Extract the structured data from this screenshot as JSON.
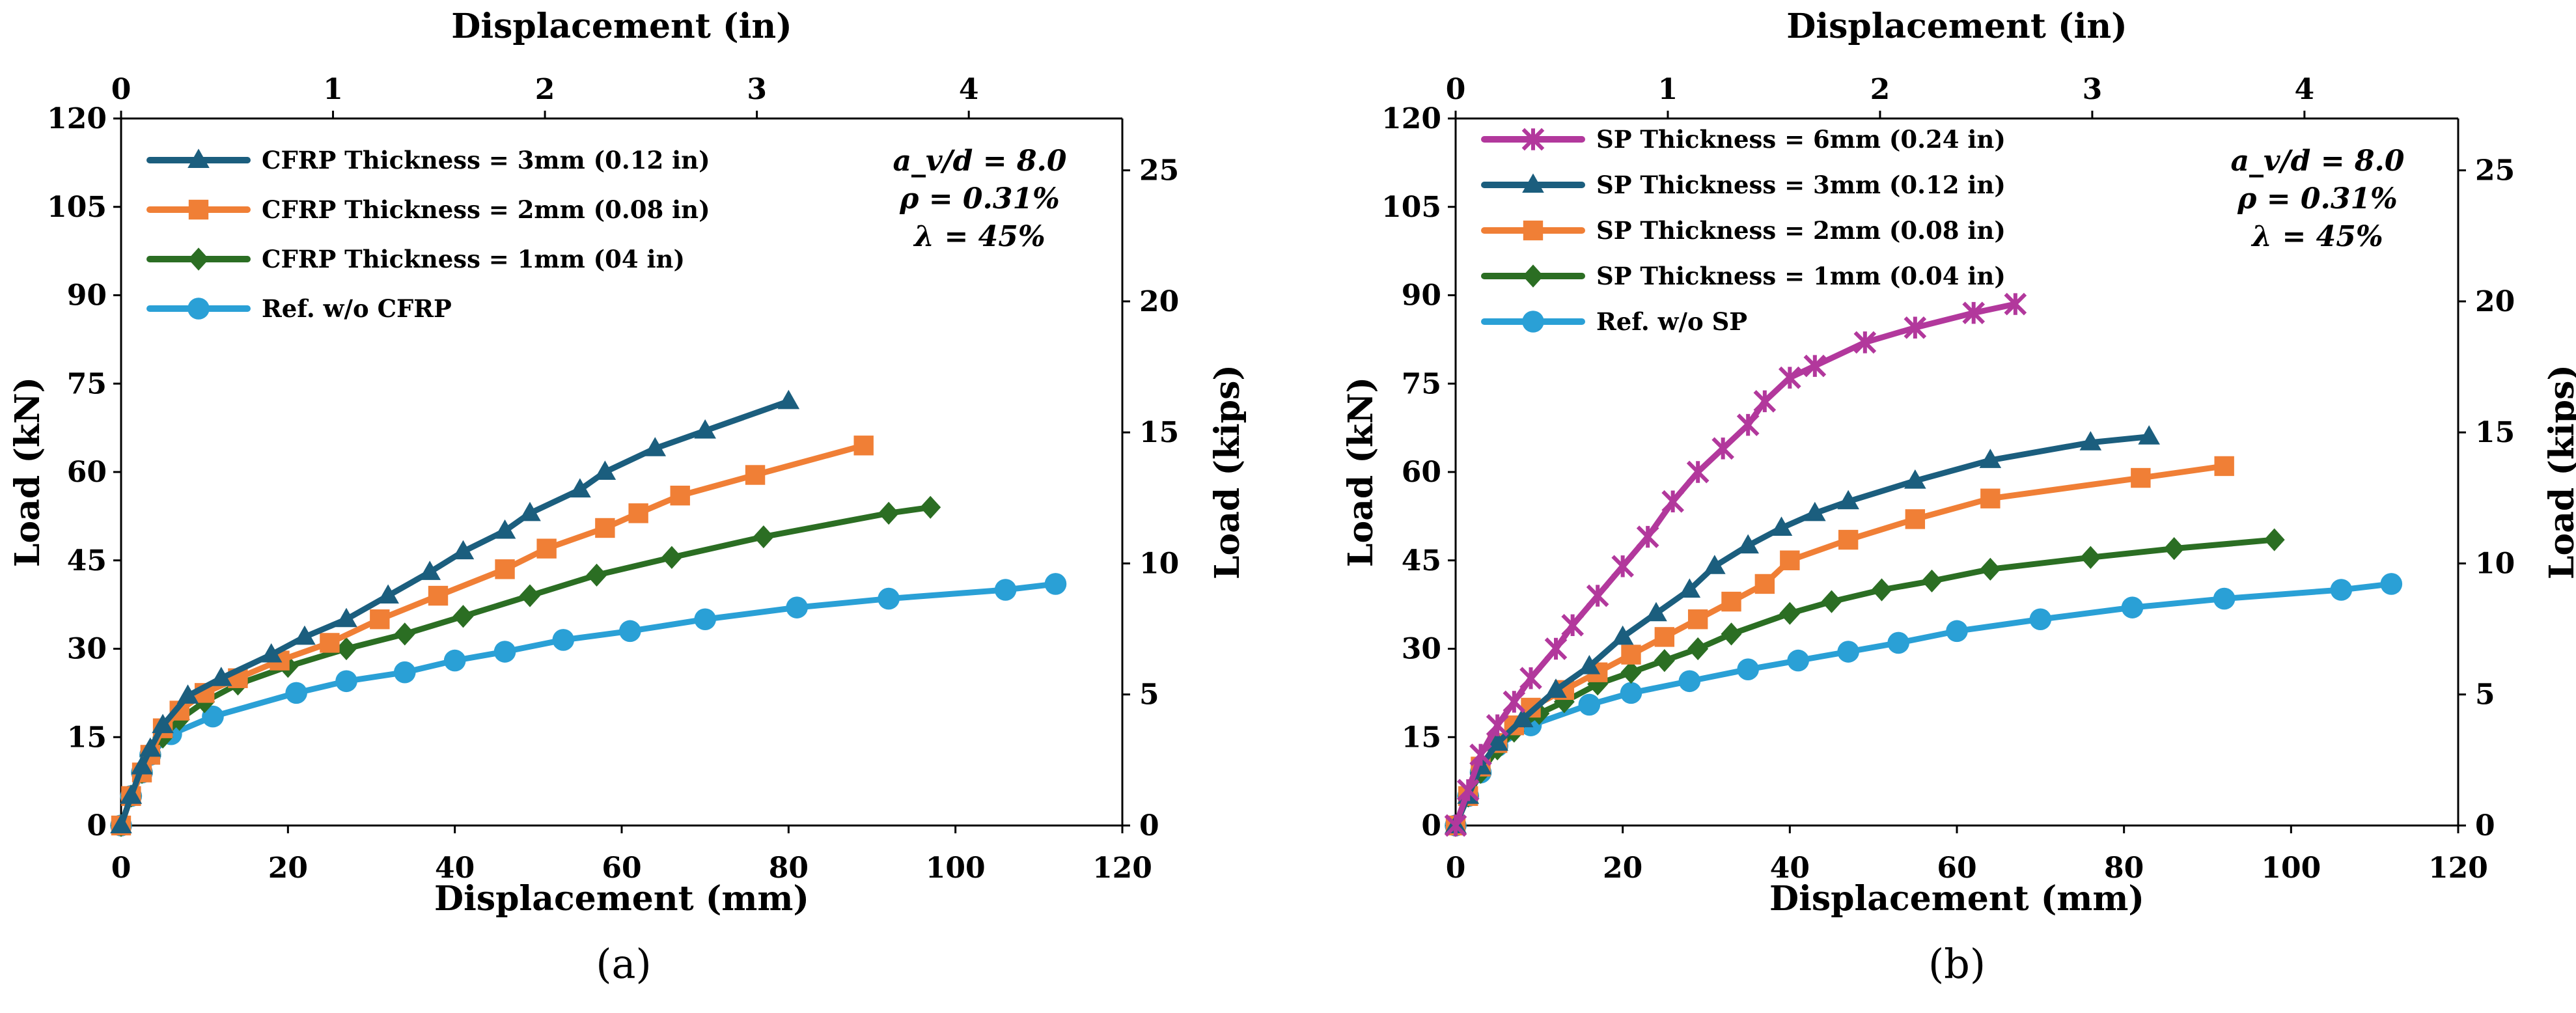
{
  "colors": {
    "cfrp3": "#1B5E7E",
    "cfrp2": "#F07F36",
    "cfrp1": "#2B6E23",
    "ref": "#2AA0D6",
    "sp6": "#B2389C",
    "axis": "#000000"
  },
  "chart_data": [
    {
      "type": "line",
      "panel_label": "a",
      "xlabel": "Displacement (mm)",
      "x2label": "Displacement (in)",
      "ylabel": "Load (kN)",
      "y2label": "Load (kips)",
      "xlim": [
        0,
        120
      ],
      "ylim": [
        0,
        120
      ],
      "xticks": [
        "0",
        "20",
        "40",
        "60",
        "80",
        "100",
        "120"
      ],
      "yticks": [
        "0",
        "15",
        "30",
        "45",
        "60",
        "75",
        "90",
        "105",
        "120"
      ],
      "x2ticks": [
        "0",
        "1",
        "2",
        "3",
        "4"
      ],
      "y2ticks": [
        "0",
        "5",
        "10",
        "15",
        "20",
        "25"
      ],
      "params": [
        "a_v/d = 8.0",
        "ρ = 0.31%",
        "λ = 45%"
      ],
      "legend_position": "top-left",
      "series": [
        {
          "name": "CFRP Thickness = 3mm (0.12 in)",
          "color_key": "cfrp3",
          "marker": "triangle",
          "x": [
            0,
            1.2,
            2.5,
            3.5,
            5,
            8,
            12,
            18,
            22,
            27,
            32,
            37,
            41,
            46,
            49,
            55,
            58,
            64,
            70,
            80
          ],
          "y": [
            0,
            5,
            10,
            13,
            17,
            22,
            25,
            29,
            32,
            35,
            39,
            43,
            46.5,
            50,
            53,
            57,
            60,
            64,
            67,
            72
          ]
        },
        {
          "name": "CFRP Thickness = 2mm (0.08 in)",
          "color_key": "cfrp2",
          "marker": "square",
          "x": [
            0,
            1.2,
            2.5,
            3.5,
            5,
            7,
            10,
            14,
            19,
            25,
            31,
            38,
            46,
            51,
            58,
            62,
            67,
            76,
            89
          ],
          "y": [
            0,
            5,
            9,
            12,
            16.5,
            19.5,
            22.5,
            25,
            28,
            31,
            35,
            39,
            43.5,
            47,
            50.5,
            53,
            56,
            59.5,
            64.5
          ]
        },
        {
          "name": "CFRP Thickness = 1mm (04 in)",
          "color_key": "cfrp1",
          "marker": "diamond",
          "x": [
            0,
            1.2,
            2.5,
            3.5,
            5,
            7,
            10,
            14,
            20,
            27,
            34,
            41,
            49,
            57,
            66,
            77,
            92,
            97
          ],
          "y": [
            0,
            5,
            9,
            12,
            15,
            18,
            21,
            24,
            27,
            30,
            32.5,
            35.5,
            39,
            42.5,
            45.5,
            49,
            53,
            54
          ]
        },
        {
          "name": "Ref. w/o CFRP",
          "color_key": "ref",
          "marker": "circle",
          "x": [
            0,
            1.2,
            2.5,
            3.5,
            6,
            11,
            21,
            27,
            34,
            40,
            46,
            53,
            61,
            70,
            81,
            92,
            106,
            112
          ],
          "y": [
            0,
            5,
            9,
            12,
            15.5,
            18.5,
            22.5,
            24.5,
            26,
            28,
            29.5,
            31.5,
            33,
            35,
            37,
            38.5,
            40,
            41
          ]
        }
      ]
    },
    {
      "type": "line",
      "panel_label": "b",
      "xlabel": "Displacement (mm)",
      "x2label": "Displacement (in)",
      "ylabel": "Load (kN)",
      "y2label": "Load (kips)",
      "xlim": [
        0,
        120
      ],
      "ylim": [
        0,
        120
      ],
      "xticks": [
        "0",
        "20",
        "40",
        "60",
        "80",
        "100",
        "120"
      ],
      "yticks": [
        "0",
        "15",
        "30",
        "45",
        "60",
        "75",
        "90",
        "105",
        "120"
      ],
      "x2ticks": [
        "0",
        "1",
        "2",
        "3",
        "4"
      ],
      "y2ticks": [
        "0",
        "5",
        "10",
        "15",
        "20",
        "25"
      ],
      "params": [
        "a_v/d = 8.0",
        "ρ = 0.31%",
        "λ = 45%"
      ],
      "legend_position": "top-left",
      "series": [
        {
          "name": "SP Thickness = 6mm (0.24 in)",
          "color_key": "sp6",
          "marker": "star",
          "x": [
            0,
            1.5,
            3,
            5,
            7,
            9,
            12,
            14,
            17,
            20,
            23,
            26,
            29,
            32,
            35,
            37,
            40,
            43,
            49,
            55,
            62,
            67
          ],
          "y": [
            0,
            6,
            12,
            17,
            21,
            25,
            30,
            34,
            39,
            44,
            49,
            55,
            60,
            64,
            68,
            72,
            76,
            78,
            82,
            84.5,
            87,
            88.5
          ]
        },
        {
          "name": "SP Thickness = 3mm (0.12 in)",
          "color_key": "sp3",
          "marker": "triangle",
          "x": [
            0,
            1.5,
            3,
            5,
            8,
            12,
            16,
            20,
            24,
            28,
            31,
            35,
            39,
            43,
            47,
            55,
            64,
            76,
            83
          ],
          "y": [
            0,
            5,
            10,
            14,
            18,
            23,
            27,
            32,
            36,
            40,
            44,
            47.5,
            50.5,
            53,
            55,
            58.5,
            62,
            65,
            66
          ]
        },
        {
          "name": "SP Thickness = 2mm (0.08 in)",
          "color_key": "sp2",
          "marker": "square",
          "x": [
            0,
            1.5,
            3,
            5,
            7,
            9,
            13,
            17,
            21,
            25,
            29,
            33,
            37,
            40,
            47,
            55,
            64,
            82,
            92
          ],
          "y": [
            0,
            5,
            10,
            14,
            17,
            20,
            23,
            26,
            29,
            32,
            35,
            38,
            41,
            45,
            48.5,
            52,
            55.5,
            59,
            61
          ]
        },
        {
          "name": "SP Thickness = 1mm (0.04 in)",
          "color_key": "sp1",
          "marker": "diamond",
          "x": [
            0,
            1.5,
            3,
            5,
            7,
            10,
            13,
            17,
            21,
            25,
            29,
            33,
            40,
            45,
            51,
            57,
            64,
            76,
            86,
            98
          ],
          "y": [
            0,
            5,
            9,
            13,
            16,
            19,
            21,
            24,
            26,
            28,
            30,
            32.5,
            36,
            38,
            40,
            41.5,
            43.5,
            45.5,
            47,
            48.5
          ]
        },
        {
          "name": "Ref. w/o SP",
          "color_key": "ref",
          "marker": "circle",
          "x": [
            0,
            1.5,
            3,
            5,
            9,
            16,
            21,
            28,
            35,
            41,
            47,
            53,
            60,
            70,
            81,
            92,
            106,
            112
          ],
          "y": [
            0,
            5,
            9,
            13.5,
            17,
            20.5,
            22.5,
            24.5,
            26.5,
            28,
            29.5,
            31,
            33,
            35,
            37,
            38.5,
            40,
            41
          ]
        }
      ]
    }
  ]
}
